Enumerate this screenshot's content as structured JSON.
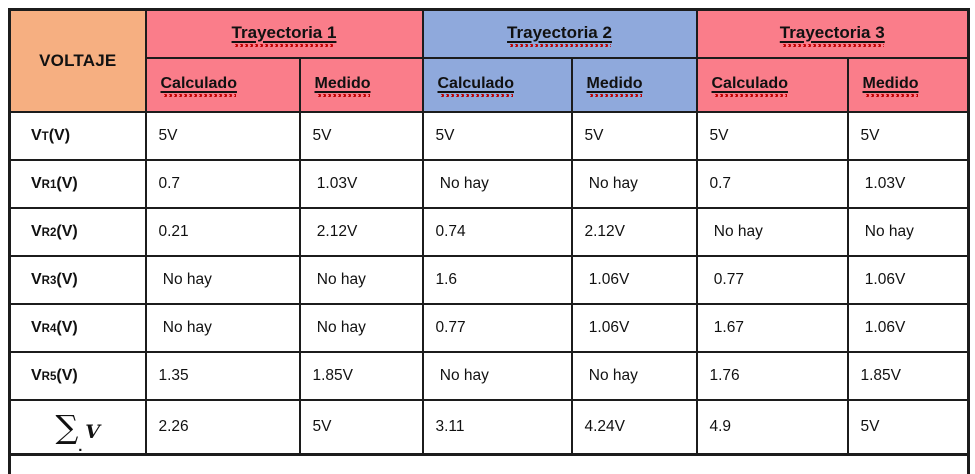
{
  "colors": {
    "voltage_header": "#F6AF81",
    "group_pink": "#FA7D8A",
    "group_blue": "#8FA9DC",
    "border": "#1c1c1c",
    "squiggle": "#C00000"
  },
  "header": {
    "voltage_label": "VOLTAJE",
    "groups": [
      {
        "label": "Trayectoria 1",
        "color": "#FA7D8A"
      },
      {
        "label": "Trayectoria 2",
        "color": "#8FA9DC"
      },
      {
        "label": "Trayectoria 3",
        "color": "#FA7D8A"
      }
    ],
    "sub_labels": [
      "Calculado",
      "Medido"
    ]
  },
  "rows": [
    {
      "label_main": "V",
      "label_sub": "T",
      "label_suffix": "(V)",
      "cells": [
        "5V",
        "5V",
        "5V",
        "5V",
        "5V",
        "5V"
      ]
    },
    {
      "label_main": "V",
      "label_sub": "R1",
      "label_suffix": "(V)",
      "cells": [
        "0.7",
        " 1.03V",
        " No hay",
        " No hay",
        "0.7",
        " 1.03V"
      ]
    },
    {
      "label_main": "V",
      "label_sub": "R2",
      "label_suffix": "(V)",
      "cells": [
        "0.21",
        " 2.12V",
        "0.74",
        "2.12V",
        " No hay",
        " No hay"
      ]
    },
    {
      "label_main": "V",
      "label_sub": "R3",
      "label_suffix": "(V)",
      "cells": [
        " No hay",
        " No hay",
        "1.6",
        " 1.06V",
        " 0.77",
        " 1.06V"
      ]
    },
    {
      "label_main": "V",
      "label_sub": "R4",
      "label_suffix": "(V)",
      "cells": [
        " No hay",
        " No hay",
        "0.77",
        " 1.06V",
        " 1.67",
        " 1.06V"
      ]
    },
    {
      "label_main": "V",
      "label_sub": "R5",
      "label_suffix": "(V)",
      "cells": [
        "1.35",
        "1.85V",
        " No hay",
        " No hay",
        "1.76",
        "1.85V"
      ]
    },
    {
      "sigma": true,
      "sigma_symbol": "∑",
      "sigma_dot": ".",
      "sigma_var": "V",
      "cells": [
        "2.26",
        "5V",
        "3.11",
        "4.24V",
        "4.9",
        "5V"
      ]
    }
  ]
}
